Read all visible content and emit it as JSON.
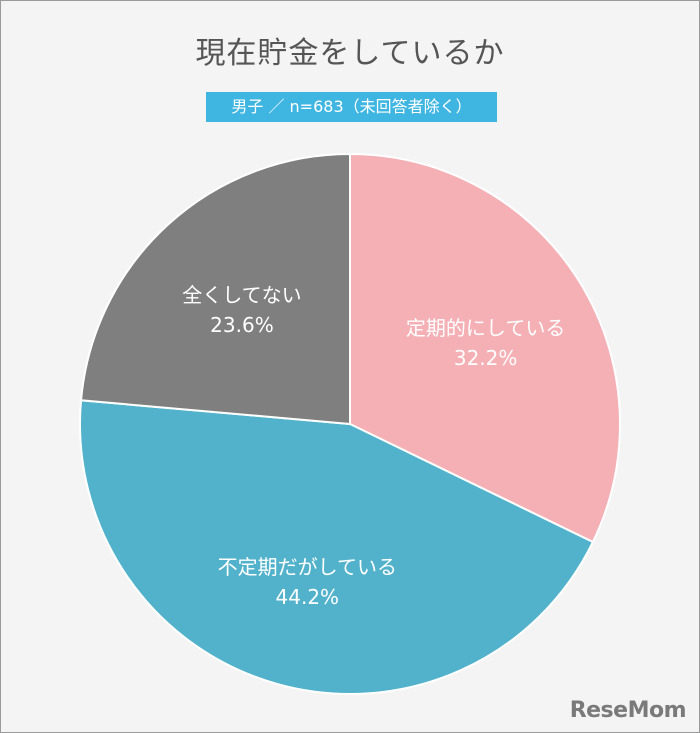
{
  "chart_data": {
    "type": "pie",
    "title": "現在貯金をしているか",
    "subtitle": "男子 ／ n=683（未回答者除く）",
    "slices": [
      {
        "label": "定期的にしている",
        "value": 32.2,
        "display": "32.2%",
        "color": "#f4b0b4"
      },
      {
        "label": "不定期だがしている",
        "value": 44.2,
        "display": "44.2%",
        "color": "#52b2cc"
      },
      {
        "label": "全くしてない",
        "value": 23.6,
        "display": "23.6%",
        "color": "#7f7f7f"
      }
    ],
    "start": "top",
    "direction": "clockwise"
  },
  "brand": {
    "logo_text": "ReseMom"
  }
}
